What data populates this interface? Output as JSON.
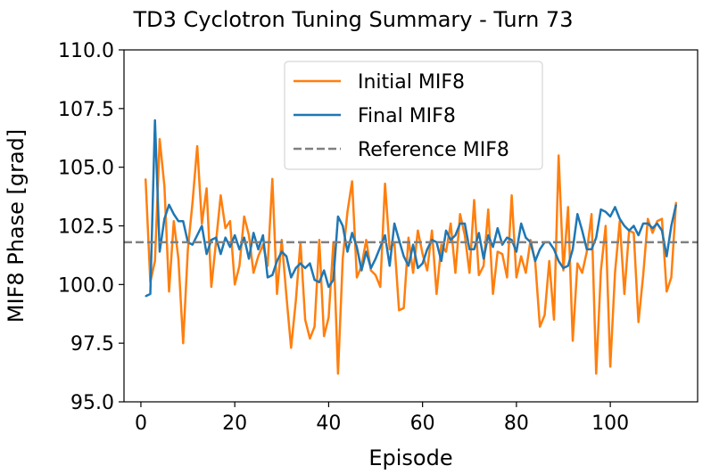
{
  "chart_data": {
    "type": "line",
    "title": "TD3 Cyclotron Tuning Summary - Turn 73",
    "xlabel": "Episode",
    "ylabel": "MIF8 Phase [grad]",
    "xlim": [
      -3.6,
      118.6
    ],
    "ylim": [
      95.0,
      110.0
    ],
    "xticks": [
      0,
      20,
      40,
      60,
      80,
      100
    ],
    "xtick_labels": [
      "0",
      "20",
      "40",
      "60",
      "80",
      "100"
    ],
    "yticks": [
      95.0,
      97.5,
      100.0,
      102.5,
      105.0,
      107.5,
      110.0
    ],
    "ytick_labels": [
      "95.0",
      "97.5",
      "100.0",
      "102.5",
      "105.0",
      "107.5",
      "110.0"
    ],
    "grid": false,
    "legend_position": "top-center",
    "series": [
      {
        "name": "Initial MIF8",
        "color": "#ff7f0e",
        "style": "solid",
        "x": [
          1,
          2,
          3,
          4,
          5,
          6,
          7,
          8,
          9,
          10,
          11,
          12,
          13,
          14,
          15,
          16,
          17,
          18,
          19,
          20,
          21,
          22,
          23,
          24,
          25,
          26,
          27,
          28,
          29,
          30,
          31,
          32,
          33,
          34,
          35,
          36,
          37,
          38,
          39,
          40,
          41,
          42,
          43,
          44,
          45,
          46,
          47,
          48,
          49,
          50,
          51,
          52,
          53,
          54,
          55,
          56,
          57,
          58,
          59,
          60,
          61,
          62,
          63,
          64,
          65,
          66,
          67,
          68,
          69,
          70,
          71,
          72,
          73,
          74,
          75,
          76,
          77,
          78,
          79,
          80,
          81,
          82,
          83,
          84,
          85,
          86,
          87,
          88,
          89,
          90,
          91,
          92,
          93,
          94,
          95,
          96,
          97,
          98,
          99,
          100,
          101,
          102,
          103,
          104,
          105,
          106,
          107,
          108,
          109,
          110,
          111,
          112,
          113,
          114
        ],
        "values": [
          104.5,
          100.1,
          101.0,
          106.2,
          104.2,
          99.7,
          102.7,
          101.1,
          97.5,
          101.5,
          103.5,
          105.9,
          102.6,
          104.1,
          99.9,
          101.8,
          103.8,
          102.4,
          102.7,
          100.0,
          100.8,
          102.9,
          102.1,
          100.5,
          101.2,
          101.7,
          100.8,
          104.5,
          99.6,
          101.9,
          99.5,
          97.3,
          99.3,
          101.8,
          98.5,
          97.7,
          98.2,
          101.9,
          97.8,
          98.6,
          101.8,
          96.2,
          101.1,
          103.1,
          104.4,
          100.3,
          100.8,
          101.9,
          100.6,
          100.4,
          99.9,
          104.3,
          101.5,
          101.8,
          98.9,
          99.0,
          102.0,
          100.5,
          102.3,
          101.3,
          100.6,
          102.3,
          99.6,
          101.7,
          101.4,
          102.6,
          100.5,
          103.0,
          102.1,
          100.5,
          103.6,
          100.4,
          100.8,
          103.2,
          99.6,
          101.4,
          101.3,
          100.3,
          103.8,
          100.3,
          101.2,
          100.5,
          101.9,
          101.0,
          98.2,
          98.7,
          101.0,
          98.5,
          105.5,
          100.6,
          103.3,
          97.6,
          100.9,
          100.5,
          101.4,
          103.0,
          96.2,
          100.6,
          102.5,
          96.5,
          100.5,
          102.7,
          99.6,
          102.3,
          102.2,
          98.4,
          100.4,
          102.8,
          102.2,
          102.7,
          102.8,
          99.7,
          100.3,
          103.5
        ]
      },
      {
        "name": "Final MIF8",
        "color": "#1f77b4",
        "style": "solid",
        "x": [
          1,
          2,
          3,
          4,
          5,
          6,
          7,
          8,
          9,
          10,
          11,
          12,
          13,
          14,
          15,
          16,
          17,
          18,
          19,
          20,
          21,
          22,
          23,
          24,
          25,
          26,
          27,
          28,
          29,
          30,
          31,
          32,
          33,
          34,
          35,
          36,
          37,
          38,
          39,
          40,
          41,
          42,
          43,
          44,
          45,
          46,
          47,
          48,
          49,
          50,
          51,
          52,
          53,
          54,
          55,
          56,
          57,
          58,
          59,
          60,
          61,
          62,
          63,
          64,
          65,
          66,
          67,
          68,
          69,
          70,
          71,
          72,
          73,
          74,
          75,
          76,
          77,
          78,
          79,
          80,
          81,
          82,
          83,
          84,
          85,
          86,
          87,
          88,
          89,
          90,
          91,
          92,
          93,
          94,
          95,
          96,
          97,
          98,
          99,
          100,
          101,
          102,
          103,
          104,
          105,
          106,
          107,
          108,
          109,
          110,
          111,
          112,
          113,
          114
        ],
        "values": [
          99.5,
          99.6,
          107.0,
          101.4,
          102.8,
          103.4,
          103.0,
          102.7,
          102.7,
          101.8,
          101.7,
          102.1,
          102.5,
          101.3,
          101.9,
          102.0,
          101.3,
          102.0,
          101.6,
          102.1,
          101.5,
          102.0,
          101.1,
          102.2,
          101.5,
          102.1,
          100.3,
          100.4,
          101.0,
          101.4,
          101.2,
          100.3,
          100.7,
          100.9,
          100.7,
          100.9,
          100.2,
          100.1,
          100.6,
          99.9,
          100.2,
          102.9,
          102.5,
          101.4,
          102.2,
          101.6,
          100.6,
          101.4,
          100.7,
          101.1,
          101.6,
          102.1,
          100.8,
          102.6,
          101.9,
          101.2,
          100.8,
          101.7,
          100.7,
          100.9,
          101.5,
          101.9,
          101.8,
          101.0,
          102.3,
          101.9,
          102.1,
          102.6,
          102.6,
          101.5,
          101.5,
          102.2,
          101.1,
          102.1,
          101.6,
          102.4,
          101.7,
          102.0,
          101.9,
          101.4,
          102.6,
          102.0,
          101.8,
          101.0,
          101.5,
          101.8,
          101.8,
          101.5,
          101.0,
          100.7,
          100.8,
          101.5,
          103.0,
          102.3,
          101.5,
          101.5,
          102.0,
          103.2,
          103.1,
          102.9,
          103.3,
          102.8,
          102.5,
          102.3,
          102.5,
          102.1,
          102.6,
          102.6,
          102.4,
          102.6,
          102.3,
          101.2,
          102.5,
          103.4
        ]
      },
      {
        "name": "Reference MIF8",
        "color": "#808080",
        "style": "dashed",
        "value": 101.8
      }
    ]
  }
}
